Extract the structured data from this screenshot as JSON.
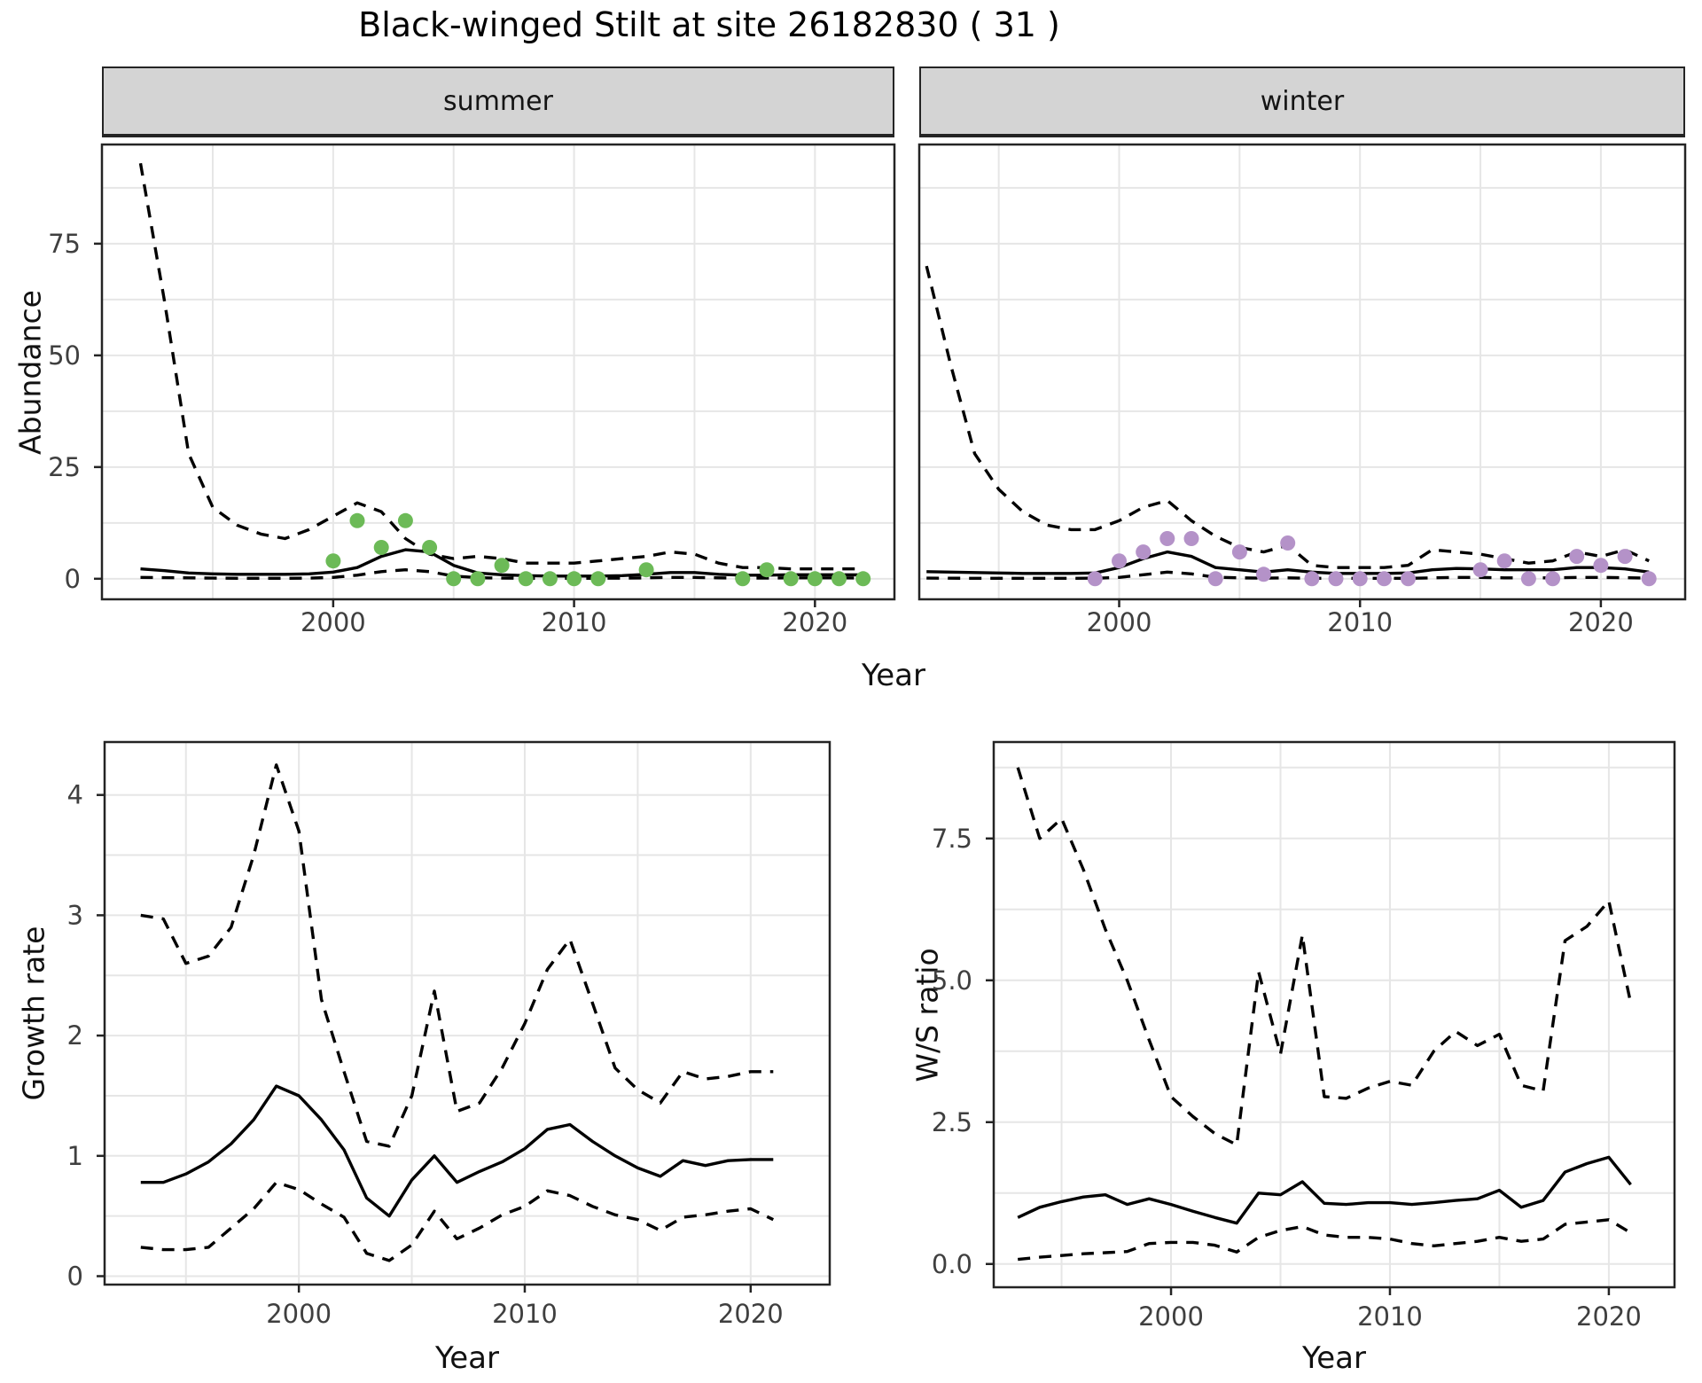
{
  "title": "Black-winged Stilt at site 26182830 ( 31 )",
  "colors": {
    "summer_point": "#6cba57",
    "winter_point": "#b492c8",
    "line": "#000000",
    "grid": "#e6e6e6",
    "strip_bg": "#d4d4d4",
    "panel_border": "#242424",
    "axis_text": "#3f3f3f"
  },
  "facet_labels": {
    "summer": "summer",
    "winter": "winter"
  },
  "axis_titles": {
    "abundance": "Abundance",
    "year": "Year",
    "growth": "Growth rate",
    "ws": "W/S ratio"
  },
  "chart_data": [
    {
      "id": "summer_abundance",
      "type": "line",
      "facet": "summer",
      "xlabel": "Year",
      "ylabel": "Abundance",
      "xticks": [
        2000,
        2010,
        2020
      ],
      "yticks": [
        0,
        25,
        50,
        75
      ],
      "ytick_labels": [
        "0",
        "25",
        "50",
        "75"
      ],
      "show_ytick_labels": true,
      "ylim": [
        -4.6,
        97.2
      ],
      "grid": true,
      "legend": "none",
      "x": [
        1992,
        1993,
        1994,
        1995,
        1996,
        1997,
        1998,
        1999,
        2000,
        2001,
        2002,
        2003,
        2004,
        2005,
        2006,
        2007,
        2008,
        2009,
        2010,
        2011,
        2012,
        2013,
        2014,
        2015,
        2016,
        2017,
        2018,
        2019,
        2020,
        2021,
        2022
      ],
      "series": [
        {
          "name": "upper_95ci",
          "style": "dashed",
          "values": [
            93,
            62,
            28,
            16,
            12,
            10,
            9,
            11,
            14,
            17,
            15,
            9,
            5.5,
            4.5,
            5,
            4.5,
            3.5,
            3.5,
            3.5,
            4,
            4.5,
            5,
            6,
            5.5,
            3.5,
            2.5,
            2.5,
            2.2,
            2.2,
            2.2,
            2.2
          ]
        },
        {
          "name": "median",
          "style": "solid",
          "values": [
            2.2,
            1.8,
            1.3,
            1.1,
            1,
            1,
            1,
            1.1,
            1.5,
            2.5,
            5,
            6.5,
            6,
            3,
            1.3,
            0.9,
            0.7,
            0.6,
            0.6,
            0.6,
            0.7,
            1,
            1.4,
            1.4,
            1,
            0.8,
            0.8,
            0.9,
            0.9,
            0.9,
            0.85
          ]
        },
        {
          "name": "lower_95ci",
          "style": "dashed",
          "values": [
            0.3,
            0.25,
            0.2,
            0.15,
            0.1,
            0.1,
            0.1,
            0.15,
            0.3,
            0.8,
            1.6,
            2,
            1.6,
            0.6,
            0.25,
            0.15,
            0.1,
            0.1,
            0.1,
            0.1,
            0.15,
            0.2,
            0.3,
            0.3,
            0.2,
            0.15,
            0.15,
            0.2,
            0.2,
            0.2,
            0.15
          ]
        }
      ],
      "points": {
        "name": "observed_count",
        "color_key": "summer_point",
        "data": [
          [
            2000,
            4
          ],
          [
            2001,
            13
          ],
          [
            2002,
            7
          ],
          [
            2003,
            13
          ],
          [
            2004,
            7
          ],
          [
            2005,
            0
          ],
          [
            2006,
            0
          ],
          [
            2007,
            3
          ],
          [
            2008,
            0
          ],
          [
            2009,
            0
          ],
          [
            2010,
            0
          ],
          [
            2011,
            0
          ],
          [
            2013,
            2
          ],
          [
            2017,
            0
          ],
          [
            2018,
            2
          ],
          [
            2019,
            0
          ],
          [
            2020,
            0
          ],
          [
            2021,
            0
          ],
          [
            2022,
            0
          ]
        ]
      }
    },
    {
      "id": "winter_abundance",
      "type": "line",
      "facet": "winter",
      "xlabel": "Year",
      "ylabel": "Abundance",
      "xticks": [
        2000,
        2010,
        2020
      ],
      "yticks": [
        0,
        25,
        50,
        75
      ],
      "ytick_labels": [
        "0",
        "25",
        "50",
        "75"
      ],
      "show_ytick_labels": false,
      "ylim": [
        -4.6,
        97.2
      ],
      "grid": true,
      "legend": "none",
      "x": [
        1992,
        1993,
        1994,
        1995,
        1996,
        1997,
        1998,
        1999,
        2000,
        2001,
        2002,
        2003,
        2004,
        2005,
        2006,
        2007,
        2008,
        2009,
        2010,
        2011,
        2012,
        2013,
        2014,
        2015,
        2016,
        2017,
        2018,
        2019,
        2020,
        2021,
        2022
      ],
      "series": [
        {
          "name": "upper_95ci",
          "style": "dashed",
          "values": [
            70,
            48,
            28,
            20,
            15,
            12,
            11,
            11,
            13,
            16,
            17.5,
            13,
            9.5,
            7,
            6,
            7.5,
            3,
            2.5,
            2.5,
            2.5,
            3,
            6.5,
            6,
            5.5,
            4.5,
            3.5,
            4,
            6,
            5,
            6.5,
            4
          ]
        },
        {
          "name": "median",
          "style": "solid",
          "values": [
            1.6,
            1.5,
            1.4,
            1.3,
            1.2,
            1.2,
            1.2,
            1.3,
            2.5,
            4.5,
            6,
            5,
            2.5,
            2,
            1.5,
            2,
            1.5,
            1.2,
            1.2,
            1.2,
            1.3,
            2,
            2.3,
            2.2,
            2,
            2,
            2,
            2.5,
            2.5,
            2.2,
            1.5
          ]
        },
        {
          "name": "lower_95ci",
          "style": "dashed",
          "values": [
            0.15,
            0.12,
            0.1,
            0.1,
            0.1,
            0.1,
            0.1,
            0.12,
            0.3,
            0.9,
            1.5,
            1.1,
            0.35,
            0.2,
            0.15,
            0.2,
            0.1,
            0.1,
            0.1,
            0.1,
            0.1,
            0.2,
            0.3,
            0.3,
            0.2,
            0.2,
            0.2,
            0.3,
            0.3,
            0.25,
            0.15
          ]
        }
      ],
      "points": {
        "name": "observed_count",
        "color_key": "winter_point",
        "data": [
          [
            1999,
            0
          ],
          [
            2000,
            4
          ],
          [
            2001,
            6
          ],
          [
            2002,
            9
          ],
          [
            2003,
            9
          ],
          [
            2004,
            0
          ],
          [
            2005,
            6
          ],
          [
            2006,
            1
          ],
          [
            2007,
            8
          ],
          [
            2008,
            0
          ],
          [
            2009,
            0
          ],
          [
            2010,
            0
          ],
          [
            2011,
            0
          ],
          [
            2012,
            0
          ],
          [
            2015,
            2
          ],
          [
            2016,
            4
          ],
          [
            2017,
            0
          ],
          [
            2018,
            0
          ],
          [
            2019,
            5
          ],
          [
            2020,
            3
          ],
          [
            2021,
            5
          ],
          [
            2022,
            0
          ]
        ]
      }
    },
    {
      "id": "growth_rate",
      "type": "line",
      "facet": "none",
      "xlabel": "Year",
      "ylabel": "Growth rate",
      "xticks": [
        2000,
        2010,
        2020
      ],
      "yticks": [
        0,
        1,
        2,
        3,
        4
      ],
      "ytick_labels": [
        "0",
        "1",
        "2",
        "3",
        "4"
      ],
      "show_ytick_labels": true,
      "ylim": [
        -0.07,
        4.44
      ],
      "grid": true,
      "legend": "none",
      "x": [
        1993,
        1994,
        1995,
        1996,
        1997,
        1998,
        1999,
        2000,
        2001,
        2002,
        2003,
        2004,
        2005,
        2006,
        2007,
        2008,
        2009,
        2010,
        2011,
        2012,
        2013,
        2014,
        2015,
        2016,
        2017,
        2018,
        2019,
        2020,
        2021
      ],
      "series": [
        {
          "name": "upper_95ci",
          "style": "dashed",
          "values": [
            3,
            2.97,
            2.6,
            2.66,
            2.9,
            3.5,
            4.25,
            3.7,
            2.3,
            1.7,
            1.12,
            1.08,
            1.5,
            2.37,
            1.37,
            1.44,
            1.73,
            2.1,
            2.55,
            2.8,
            2.27,
            1.73,
            1.55,
            1.44,
            1.7,
            1.64,
            1.66,
            1.7,
            1.7
          ]
        },
        {
          "name": "median",
          "style": "solid",
          "values": [
            0.78,
            0.78,
            0.85,
            0.95,
            1.1,
            1.3,
            1.58,
            1.5,
            1.3,
            1.05,
            0.65,
            0.5,
            0.8,
            1,
            0.78,
            0.87,
            0.95,
            1.06,
            1.22,
            1.26,
            1.12,
            1,
            0.9,
            0.83,
            0.96,
            0.92,
            0.96,
            0.97,
            0.97
          ]
        },
        {
          "name": "lower_95ci",
          "style": "dashed",
          "values": [
            0.24,
            0.22,
            0.22,
            0.24,
            0.4,
            0.56,
            0.78,
            0.72,
            0.6,
            0.49,
            0.19,
            0.13,
            0.26,
            0.54,
            0.31,
            0.4,
            0.51,
            0.58,
            0.71,
            0.67,
            0.58,
            0.51,
            0.47,
            0.38,
            0.49,
            0.51,
            0.54,
            0.56,
            0.47
          ]
        }
      ],
      "points": null
    },
    {
      "id": "ws_ratio",
      "type": "line",
      "facet": "none",
      "xlabel": "Year",
      "ylabel": "W/S ratio",
      "xticks": [
        2000,
        2010,
        2020
      ],
      "yticks": [
        0,
        2.5,
        5,
        7.5
      ],
      "ytick_labels": [
        "0.0",
        "2.5",
        "5.0",
        "7.5"
      ],
      "show_ytick_labels": true,
      "ylim": [
        -0.41,
        9.2
      ],
      "grid": true,
      "legend": "none",
      "x": [
        1993,
        1994,
        1995,
        1996,
        1997,
        1998,
        1999,
        2000,
        2001,
        2002,
        2003,
        2004,
        2005,
        2006,
        2007,
        2008,
        2009,
        2010,
        2011,
        2012,
        2013,
        2014,
        2015,
        2016,
        2017,
        2018,
        2019,
        2020,
        2021
      ],
      "series": [
        {
          "name": "upper_95ci",
          "style": "dashed",
          "values": [
            8.75,
            7.5,
            7.85,
            6.95,
            5.9,
            5,
            3.95,
            2.95,
            2.6,
            2.3,
            2.1,
            5.15,
            3.7,
            5.8,
            2.95,
            2.92,
            3.1,
            3.22,
            3.15,
            3.75,
            4.1,
            3.85,
            4.05,
            3.15,
            3.05,
            5.7,
            5.95,
            6.4,
            4.6
          ]
        },
        {
          "name": "median",
          "style": "solid",
          "values": [
            0.82,
            1,
            1.1,
            1.18,
            1.22,
            1.05,
            1.15,
            1.05,
            0.93,
            0.82,
            0.72,
            1.25,
            1.22,
            1.45,
            1.07,
            1.05,
            1.08,
            1.08,
            1.05,
            1.08,
            1.12,
            1.15,
            1.3,
            1,
            1.12,
            1.62,
            1.77,
            1.88,
            1.4
          ]
        },
        {
          "name": "lower_95ci",
          "style": "dashed",
          "values": [
            0.08,
            0.12,
            0.15,
            0.18,
            0.2,
            0.22,
            0.36,
            0.38,
            0.38,
            0.33,
            0.21,
            0.47,
            0.59,
            0.66,
            0.51,
            0.47,
            0.47,
            0.44,
            0.36,
            0.32,
            0.36,
            0.4,
            0.47,
            0.4,
            0.44,
            0.7,
            0.74,
            0.78,
            0.55
          ]
        }
      ],
      "points": null
    }
  ]
}
